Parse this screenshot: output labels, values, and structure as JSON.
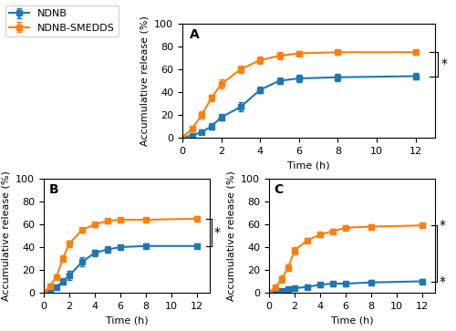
{
  "chart_data": [
    {
      "type": "line",
      "panel_label": "A",
      "x": [
        0,
        0.5,
        1,
        1.5,
        2,
        3,
        4,
        5,
        6,
        8,
        12
      ],
      "series": [
        {
          "name": "NDNB",
          "marker": "square",
          "values": [
            0,
            2,
            5,
            10,
            18,
            27,
            42,
            50,
            52,
            53,
            54
          ],
          "errors": [
            0,
            1,
            2,
            3,
            3,
            4,
            3,
            3,
            3,
            3,
            3
          ]
        },
        {
          "name": "NDNB-SMEDDS",
          "marker": "square",
          "values": [
            0,
            8,
            20,
            35,
            47,
            60,
            68,
            72,
            74,
            75,
            75
          ],
          "errors": [
            0,
            2,
            3,
            3,
            4,
            3,
            3,
            3,
            2,
            2,
            2
          ]
        }
      ],
      "xlabel": "Time (h)",
      "ylabel": "Accumulative release (%)",
      "xlim": [
        0,
        13
      ],
      "ylim": [
        0,
        100
      ],
      "xticks": [
        0,
        2,
        4,
        6,
        8,
        10,
        12
      ],
      "yticks": [
        0,
        20,
        40,
        60,
        80,
        100
      ],
      "bracket": {
        "y": [
          54,
          75
        ],
        "text": "*"
      },
      "legend": "upper left"
    },
    {
      "type": "line",
      "panel_label": "B",
      "x": [
        0,
        0.5,
        1,
        1.5,
        2,
        3,
        4,
        5,
        6,
        8,
        12
      ],
      "series": [
        {
          "name": "NDNB",
          "marker": "square",
          "values": [
            0,
            1,
            5,
            10,
            15,
            27,
            35,
            38,
            40,
            41,
            41
          ],
          "errors": [
            0,
            1,
            2,
            3,
            4,
            4,
            3,
            3,
            2,
            2,
            2
          ]
        },
        {
          "name": "NDNB-SMEDDS",
          "marker": "square",
          "values": [
            0,
            6,
            14,
            30,
            43,
            55,
            60,
            63,
            64,
            64,
            65
          ],
          "errors": [
            0,
            2,
            2,
            3,
            3,
            2,
            2,
            2,
            2,
            2,
            2
          ]
        }
      ],
      "xlabel": "Time (h)",
      "ylabel": "Accumulative release (%)",
      "xlim": [
        0,
        13
      ],
      "ylim": [
        0,
        100
      ],
      "xticks": [
        0,
        2,
        4,
        6,
        8,
        10,
        12
      ],
      "yticks": [
        0,
        20,
        40,
        60,
        80,
        100
      ],
      "bracket": {
        "y": [
          41,
          65
        ],
        "text": "*"
      }
    },
    {
      "type": "line",
      "panel_label": "C",
      "x": [
        0,
        0.5,
        1,
        1.5,
        2,
        3,
        4,
        5,
        6,
        8,
        12
      ],
      "series": [
        {
          "name": "NDNB",
          "marker": "square",
          "values": [
            0,
            1,
            2,
            3,
            4,
            5,
            7,
            8,
            8,
            9,
            10
          ],
          "errors": [
            0,
            0.5,
            1,
            1,
            1,
            2,
            2,
            2,
            2,
            2,
            2
          ]
        },
        {
          "name": "NDNB-SMEDDS",
          "marker": "square",
          "values": [
            0,
            5,
            12,
            22,
            37,
            46,
            51,
            54,
            57,
            58,
            59
          ],
          "errors": [
            0,
            2,
            3,
            3,
            3,
            2,
            2,
            2,
            2,
            2,
            2
          ]
        }
      ],
      "xlabel": "Time (h)",
      "ylabel": "Accumulative release (%)",
      "xlim": [
        0,
        13
      ],
      "ylim": [
        0,
        100
      ],
      "xticks": [
        0,
        2,
        4,
        6,
        8,
        10,
        12
      ],
      "yticks": [
        0,
        20,
        40,
        60,
        80,
        100
      ],
      "bracket": {
        "y": [
          10,
          59
        ],
        "end_texts": [
          "*",
          "*"
        ]
      }
    }
  ]
}
